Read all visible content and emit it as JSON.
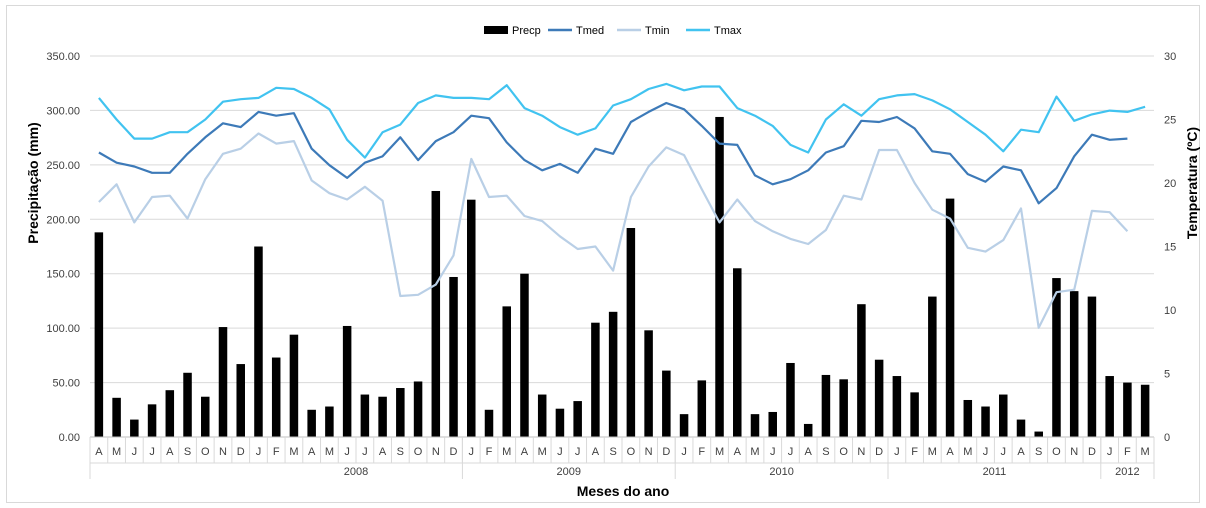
{
  "chart_data": {
    "type": "bar+line",
    "title": "",
    "xlabel": "Meses do ano",
    "ylabel": "Precipitação (mm)",
    "y2label": "Temperatura (ºC)",
    "ylim": [
      0,
      350
    ],
    "y2lim": [
      0,
      30
    ],
    "yticks": [
      "0.00",
      "50.00",
      "100.00",
      "150.00",
      "200.00",
      "250.00",
      "300.00",
      "350.00"
    ],
    "y2ticks": [
      "0",
      "5",
      "10",
      "15",
      "20",
      "25",
      "30"
    ],
    "grid": true,
    "legend_position": "top",
    "months": [
      "A",
      "M",
      "J",
      "J",
      "A",
      "S",
      "O",
      "N",
      "D",
      "J",
      "F",
      "M",
      "A",
      "M",
      "J",
      "J",
      "A",
      "S",
      "O",
      "N",
      "D",
      "J",
      "F",
      "M",
      "A",
      "M",
      "J",
      "J",
      "A",
      "S",
      "O",
      "N",
      "D",
      "J",
      "F",
      "M",
      "A",
      "M",
      "J",
      "J",
      "A",
      "S",
      "O",
      "N",
      "D",
      "J",
      "F",
      "M",
      "A",
      "M",
      "J",
      "J",
      "A",
      "S",
      "O",
      "N",
      "D",
      "J",
      "F",
      "M"
    ],
    "years": [
      {
        "label": "2008",
        "start": 9,
        "end": 20
      },
      {
        "label": "2009",
        "start": 21,
        "end": 32
      },
      {
        "label": "2010",
        "start": 33,
        "end": 44
      },
      {
        "label": "2011",
        "start": 45,
        "end": 56
      },
      {
        "label": "2012",
        "start": 57,
        "end": 59
      }
    ],
    "series": [
      {
        "name": "Precp",
        "kind": "bar",
        "axis": "left",
        "color": "#000000",
        "values": [
          188,
          36,
          16,
          30,
          43,
          59,
          37,
          101,
          67,
          175,
          73,
          94,
          25,
          28,
          102,
          39,
          37,
          45,
          51,
          226,
          147,
          218,
          25,
          120,
          150,
          39,
          26,
          33,
          105,
          115,
          192,
          98,
          61,
          21,
          52,
          294,
          155,
          21,
          23,
          68,
          12,
          57,
          53,
          122,
          71,
          56,
          41,
          129,
          219,
          34,
          28,
          39,
          16,
          5,
          146,
          134,
          129,
          56,
          50,
          48
        ]
      },
      {
        "name": "Tmed",
        "kind": "line",
        "axis": "right",
        "color": "#3d7ab8",
        "values": [
          22.4,
          21.6,
          21.3,
          20.8,
          20.8,
          22.3,
          23.6,
          24.7,
          24.4,
          25.6,
          25.3,
          25.5,
          22.7,
          21.4,
          20.4,
          21.6,
          22.1,
          23.6,
          21.8,
          23.3,
          24.0,
          25.3,
          25.1,
          23.2,
          21.8,
          21.0,
          21.5,
          20.8,
          22.7,
          22.3,
          24.8,
          25.6,
          26.3,
          25.8,
          24.5,
          23.1,
          23.0,
          20.6,
          19.9,
          20.3,
          21.0,
          22.4,
          22.9,
          24.9,
          24.8,
          25.2,
          24.3,
          22.5,
          22.3,
          20.7,
          20.1,
          21.3,
          21.0,
          18.4,
          19.6,
          22.1,
          23.8,
          23.4,
          23.5,
          null
        ]
      },
      {
        "name": "Tmin",
        "kind": "line",
        "axis": "right",
        "color": "#b9cfe6",
        "values": [
          18.5,
          19.9,
          16.9,
          18.9,
          19.0,
          17.2,
          20.3,
          22.3,
          22.7,
          23.9,
          23.1,
          23.3,
          20.2,
          19.2,
          18.7,
          19.7,
          18.6,
          11.1,
          11.2,
          12.0,
          14.3,
          21.9,
          18.9,
          19.0,
          17.4,
          17.0,
          15.8,
          14.8,
          15.0,
          13.1,
          18.9,
          21.3,
          22.8,
          22.2,
          19.5,
          16.9,
          18.7,
          17.0,
          16.2,
          15.6,
          15.2,
          16.3,
          19.0,
          18.7,
          22.6,
          22.6,
          20.0,
          17.9,
          17.2,
          14.9,
          14.6,
          15.5,
          18.0,
          8.6,
          11.4,
          11.6,
          17.8,
          17.7,
          16.2,
          null
        ]
      },
      {
        "name": "Tmax",
        "kind": "line",
        "axis": "right",
        "color": "#41c3f0",
        "values": [
          26.7,
          25.0,
          23.5,
          23.5,
          24.0,
          24.0,
          25.0,
          26.4,
          26.6,
          26.7,
          27.5,
          27.4,
          26.7,
          25.8,
          23.4,
          22.0,
          24.0,
          24.6,
          26.3,
          26.9,
          26.7,
          26.7,
          26.6,
          27.7,
          25.9,
          25.3,
          24.4,
          23.8,
          24.3,
          26.1,
          26.6,
          27.4,
          27.8,
          27.3,
          27.6,
          27.6,
          25.9,
          25.3,
          24.5,
          23.0,
          22.4,
          25.0,
          26.2,
          25.3,
          26.6,
          26.9,
          27.0,
          26.5,
          25.8,
          24.8,
          23.8,
          22.5,
          24.2,
          24.0,
          26.8,
          24.9,
          25.4,
          25.7,
          25.6,
          26.0
        ]
      }
    ]
  }
}
